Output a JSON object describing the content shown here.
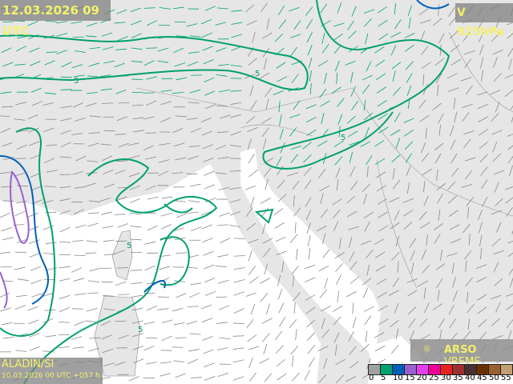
{
  "header": {
    "valid_time": "12.03.2026 09 UTC",
    "field": "V 925hPa"
  },
  "footer": {
    "model": "ALADIN/SI",
    "run": "10.03.2026 00 UTC +057 h"
  },
  "brand": {
    "icon": "sun-icon",
    "bold": "ARSO",
    "light": "VREME"
  },
  "contour_labels": [
    "5",
    "5",
    "5",
    "5",
    "5"
  ],
  "legend": {
    "title": "",
    "colors": [
      "#a0a0a0",
      "#00a070",
      "#0060b8",
      "#9a60d0",
      "#e040f0",
      "#f0009a",
      "#e82020",
      "#a03030",
      "#4a3030",
      "#6a3000",
      "#9a6030",
      "#c0a070"
    ],
    "ticks": [
      "0",
      "5",
      "10",
      "15",
      "20",
      "25",
      "30",
      "35",
      "40",
      "45",
      "50",
      "55"
    ]
  },
  "colors": {
    "land": "#e6e6e6",
    "sea": "#ffffff",
    "contour_5": "#00a070",
    "contour_10": "#0060b8",
    "contour_15": "#9a60d0",
    "barbs": "#888888",
    "label_text": "#f5f06a"
  }
}
